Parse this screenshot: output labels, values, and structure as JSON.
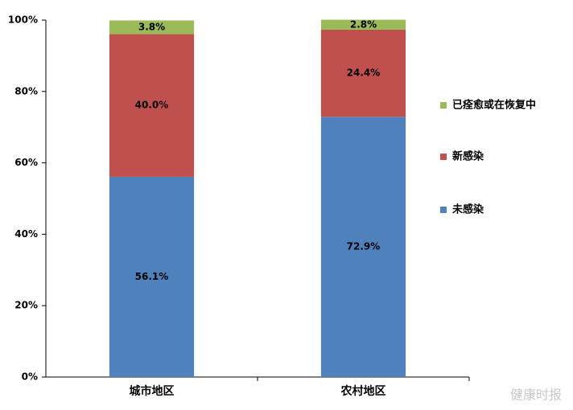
{
  "chart_data": {
    "type": "stacked_bar",
    "categories": [
      "城市地区",
      "农村地区"
    ],
    "series": [
      {
        "name": "未感染",
        "color": "#4f81bd",
        "values": [
          56.1,
          72.9
        ],
        "value_labels": [
          "56.1%",
          "72.9%"
        ]
      },
      {
        "name": "新感染",
        "color": "#c0504d",
        "values": [
          40.0,
          24.4
        ],
        "value_labels": [
          "40.0%",
          "24.4%"
        ]
      },
      {
        "name": "已痊愈或在恢复中",
        "color": "#9bbb59",
        "values": [
          3.8,
          2.8
        ],
        "value_labels": [
          "3.8%",
          "2.8%"
        ]
      }
    ],
    "ylim": [
      0,
      100
    ],
    "yticks": [
      {
        "value": 0,
        "label": "0%"
      },
      {
        "value": 20,
        "label": "20%"
      },
      {
        "value": 40,
        "label": "40%"
      },
      {
        "value": 60,
        "label": "60%"
      },
      {
        "value": 80,
        "label": "80%"
      },
      {
        "value": 100,
        "label": "100%"
      }
    ],
    "grid": false,
    "legend": "right",
    "watermark": "健康时报"
  }
}
